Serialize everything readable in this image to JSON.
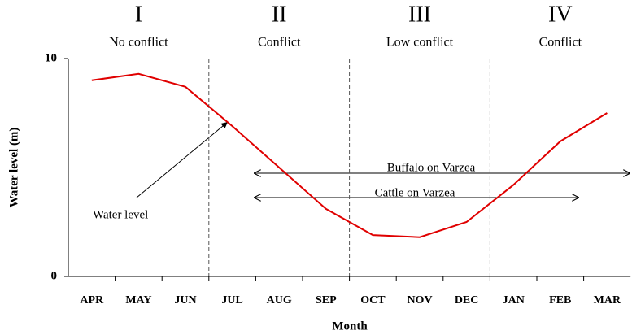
{
  "chart_data": {
    "type": "line",
    "y_label": "Water level (m)",
    "x_label": "Month",
    "categories": [
      "APR",
      "MAY",
      "JUN",
      "JUL",
      "AUG",
      "SEP",
      "OCT",
      "NOV",
      "DEC",
      "JAN",
      "FEB",
      "MAR"
    ],
    "series": [
      {
        "name": "Water level",
        "color": "#e00000",
        "values": [
          9.0,
          9.3,
          8.7,
          6.9,
          5.0,
          3.1,
          1.9,
          1.8,
          2.5,
          4.2,
          6.2,
          7.5
        ]
      }
    ],
    "ylim": [
      0,
      10
    ],
    "yticks": [
      0,
      10
    ],
    "periods": [
      {
        "numeral": "I",
        "label": "No conflict"
      },
      {
        "numeral": "II",
        "label": "Conflict"
      },
      {
        "numeral": "III",
        "label": "Low conflict"
      },
      {
        "numeral": "IV",
        "label": "Conflict"
      }
    ],
    "annotations": [
      "Buffalo on Varzea",
      "Cattle on Varzea"
    ]
  }
}
